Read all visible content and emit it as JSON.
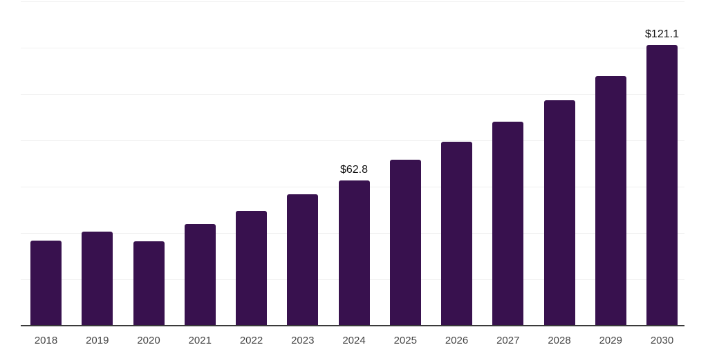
{
  "chart_data": {
    "type": "bar",
    "title": "",
    "xlabel": "",
    "ylabel": "",
    "categories": [
      "2018",
      "2019",
      "2020",
      "2021",
      "2022",
      "2023",
      "2024",
      "2025",
      "2026",
      "2027",
      "2028",
      "2029",
      "2030"
    ],
    "values": [
      36.7,
      40.6,
      36.4,
      44.0,
      49.6,
      56.7,
      62.8,
      71.6,
      79.4,
      88.1,
      97.3,
      107.8,
      121.1
    ],
    "annotations": [
      {
        "category": "2024",
        "text": "$62.8"
      },
      {
        "category": "2030",
        "text": "$121.1"
      }
    ],
    "ylim": [
      0,
      140
    ],
    "gridline_step": 20,
    "grid": "horizontal-only",
    "legend": "none",
    "y_axis_labels_visible": false,
    "colors": {
      "bar": "#38114E",
      "gridline": "#f0f0f0",
      "axis_line": "#3a3a3a",
      "tick_label": "#444444",
      "data_label": "#111111",
      "background": "#ffffff"
    }
  }
}
